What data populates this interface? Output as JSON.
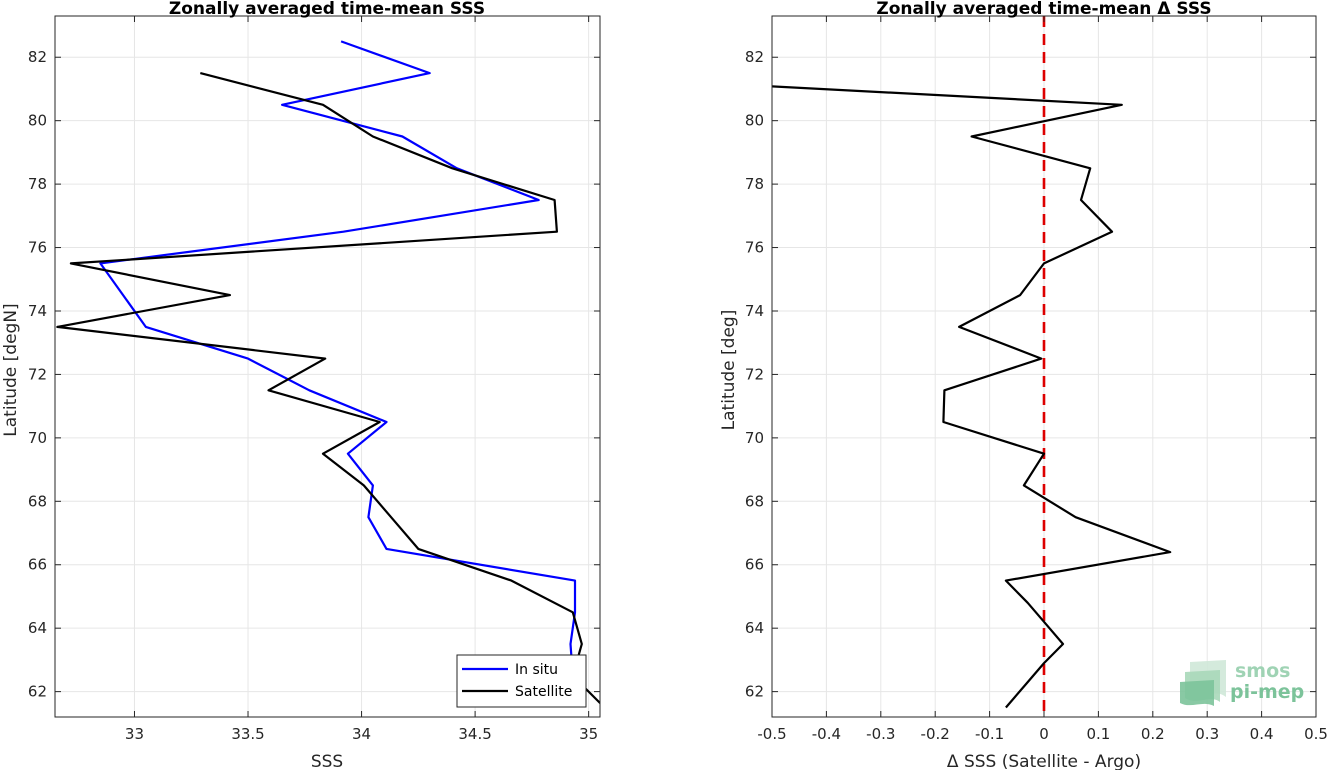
{
  "logo": {
    "line1": "smos",
    "line2": "pi-mep",
    "colors": [
      "#cfe8d8",
      "#a9d8b9",
      "#7cc39a"
    ]
  },
  "chart_data": [
    {
      "type": "line",
      "title": "Zonally averaged time-mean SSS",
      "xlabel": "SSS",
      "ylabel": "Latitude [degN]",
      "xlim": [
        32.65,
        35.05
      ],
      "ylim": [
        61.2,
        83.3
      ],
      "xticks": [
        33,
        33.5,
        34,
        34.5,
        35
      ],
      "xtick_labels": [
        "33",
        "33.5",
        "34",
        "34.5",
        "35"
      ],
      "yticks": [
        62,
        64,
        66,
        68,
        70,
        72,
        74,
        76,
        78,
        80,
        82
      ],
      "grid": true,
      "legend": "bottom-right",
      "series": [
        {
          "name": "In situ",
          "color": "#0000ff",
          "points": [
            [
              34.93,
              61.5
            ],
            [
              34.93,
              62.5
            ],
            [
              34.92,
              63.5
            ],
            [
              34.94,
              64.5
            ],
            [
              34.94,
              65.5
            ],
            [
              34.11,
              66.5
            ],
            [
              34.03,
              67.5
            ],
            [
              34.05,
              68.5
            ],
            [
              33.94,
              69.5
            ],
            [
              34.11,
              70.5
            ],
            [
              33.77,
              71.5
            ],
            [
              33.5,
              72.5
            ],
            [
              33.05,
              73.5
            ],
            [
              32.95,
              74.5
            ],
            [
              32.85,
              75.5
            ],
            [
              33.92,
              76.5
            ],
            [
              34.78,
              77.5
            ],
            [
              34.42,
              78.5
            ],
            [
              34.18,
              79.5
            ],
            [
              33.65,
              80.5
            ],
            [
              34.3,
              81.5
            ],
            [
              33.91,
              82.5
            ]
          ]
        },
        {
          "name": "Satellite",
          "color": "#000000",
          "points": [
            [
              35.07,
              61.5
            ],
            [
              34.93,
              62.5
            ],
            [
              34.97,
              63.5
            ],
            [
              34.93,
              64.5
            ],
            [
              34.66,
              65.5
            ],
            [
              34.25,
              66.5
            ],
            [
              34.13,
              67.5
            ],
            [
              34.01,
              68.5
            ],
            [
              33.83,
              69.5
            ],
            [
              34.08,
              70.5
            ],
            [
              33.59,
              71.5
            ],
            [
              33.84,
              72.5
            ],
            [
              32.66,
              73.5
            ],
            [
              33.42,
              74.5
            ],
            [
              32.72,
              75.5
            ],
            [
              34.86,
              76.5
            ],
            [
              34.85,
              77.5
            ],
            [
              34.4,
              78.5
            ],
            [
              34.05,
              79.5
            ],
            [
              33.83,
              80.5
            ],
            [
              33.29,
              81.5
            ]
          ]
        }
      ]
    },
    {
      "type": "line",
      "title": "Zonally averaged time-mean Δ SSS",
      "xlabel": "Δ SSS (Satellite - Argo)",
      "ylabel": "Latitude [deg]",
      "xlim": [
        -0.5,
        0.5
      ],
      "ylim": [
        61.2,
        83.3
      ],
      "xticks": [
        -0.5,
        -0.4,
        -0.3,
        -0.2,
        -0.1,
        0,
        0.1,
        0.2,
        0.3,
        0.4,
        0.5
      ],
      "xtick_labels": [
        "-0.5",
        "-0.4",
        "-0.3",
        "-0.2",
        "-0.1",
        "0",
        "0.1",
        "0.2",
        "0.3",
        "0.4",
        "0.5"
      ],
      "yticks": [
        62,
        64,
        66,
        68,
        70,
        72,
        74,
        76,
        78,
        80,
        82
      ],
      "grid": true,
      "reference_line": {
        "x": 0,
        "color": "#dd0000",
        "style": "dashed"
      },
      "series": [
        {
          "color": "#000000",
          "points": [
            [
              -0.07,
              61.5
            ],
            [
              -0.03,
              62.3
            ],
            [
              0.0,
              62.9
            ],
            [
              0.035,
              63.5
            ],
            [
              0.0,
              64.2
            ],
            [
              -0.03,
              64.8
            ],
            [
              -0.07,
              65.5
            ],
            [
              0.232,
              66.4
            ],
            [
              0.058,
              67.5
            ],
            [
              -0.037,
              68.5
            ],
            [
              0.0,
              69.5
            ],
            [
              -0.185,
              70.5
            ],
            [
              -0.183,
              71.5
            ],
            [
              -0.005,
              72.5
            ],
            [
              -0.156,
              73.5
            ],
            [
              -0.044,
              74.5
            ],
            [
              0.0,
              75.5
            ],
            [
              0.125,
              76.5
            ],
            [
              0.068,
              77.5
            ],
            [
              0.085,
              78.5
            ],
            [
              -0.133,
              79.5
            ],
            [
              0.143,
              80.5
            ],
            [
              -0.52,
              81.1
            ]
          ]
        }
      ]
    }
  ]
}
